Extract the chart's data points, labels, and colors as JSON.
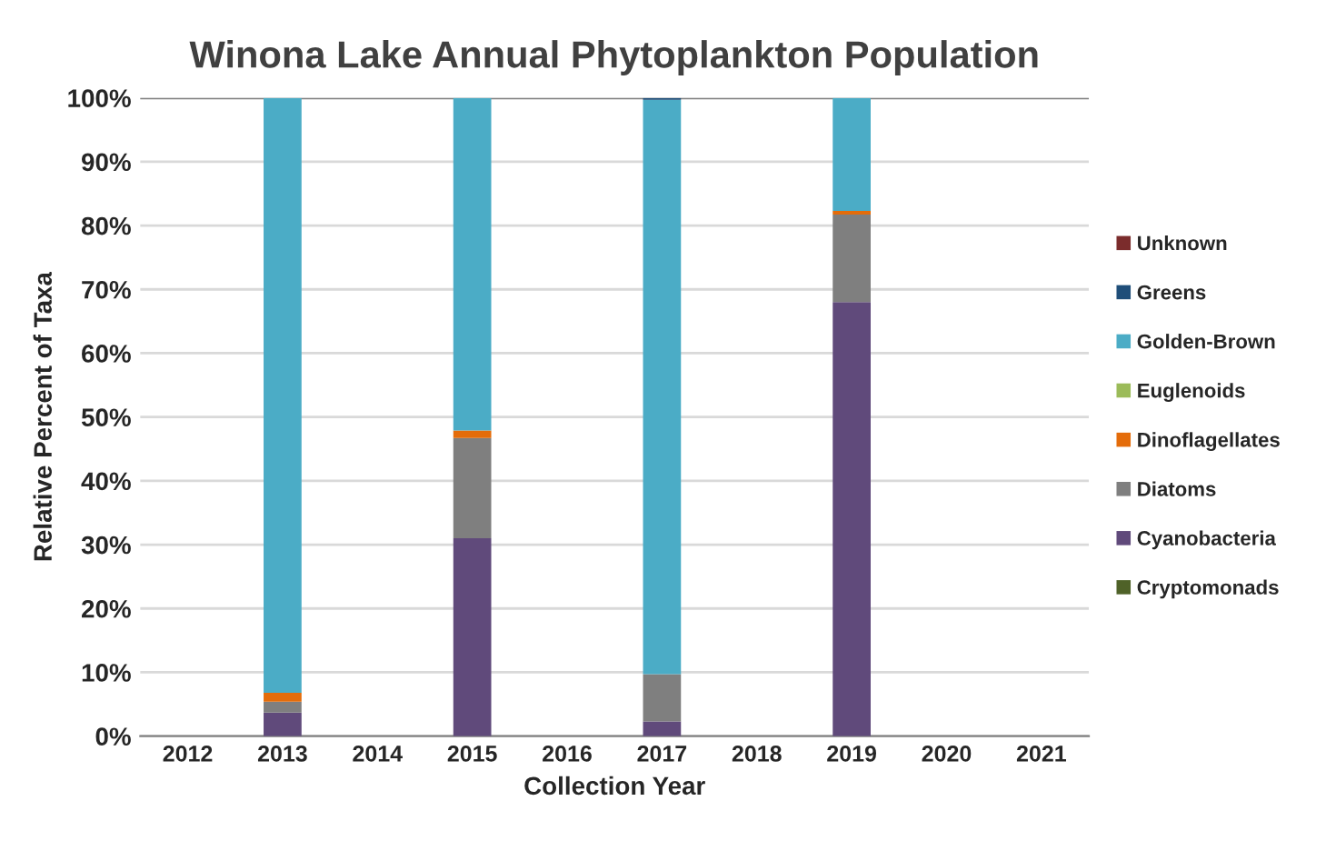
{
  "chart_data": {
    "type": "bar",
    "stacked": true,
    "title": "Winona Lake Annual Phytoplankton Population",
    "xlabel": "Collection Year",
    "ylabel": "Relative Percent of Taxa",
    "categories": [
      "2012",
      "2013",
      "2014",
      "2015",
      "2016",
      "2017",
      "2018",
      "2019",
      "2020",
      "2021"
    ],
    "series": [
      {
        "name": "Cryptomonads",
        "color": "#4f6228",
        "values": [
          null,
          null,
          null,
          null,
          null,
          null,
          null,
          null,
          null,
          null
        ]
      },
      {
        "name": "Cyanobacteria",
        "color": "#604a7b",
        "values": [
          null,
          3.7,
          null,
          31,
          null,
          2.3,
          null,
          68,
          null,
          null
        ]
      },
      {
        "name": "Diatoms",
        "color": "#7f7f7f",
        "values": [
          null,
          1.7,
          null,
          15.7,
          null,
          7.4,
          null,
          13.7,
          null,
          null
        ]
      },
      {
        "name": "Dinoflagellates",
        "color": "#e46c0a",
        "values": [
          null,
          1.4,
          null,
          1.2,
          null,
          0,
          null,
          0.6,
          null,
          null
        ]
      },
      {
        "name": "Euglenoids",
        "color": "#9bbb59",
        "values": [
          null,
          null,
          null,
          null,
          null,
          null,
          null,
          null,
          null,
          null
        ]
      },
      {
        "name": "Golden-Brown",
        "color": "#4bacc6",
        "values": [
          null,
          93.2,
          null,
          52.1,
          null,
          90,
          null,
          17.7,
          null,
          null
        ]
      },
      {
        "name": "Greens",
        "color": "#1f4e79",
        "values": [
          null,
          0,
          null,
          0,
          null,
          0.3,
          null,
          0,
          null,
          null
        ]
      },
      {
        "name": "Unknown",
        "color": "#7b2c2c",
        "values": [
          null,
          null,
          null,
          null,
          null,
          null,
          null,
          null,
          null,
          null
        ]
      }
    ],
    "ylim": [
      0,
      100
    ],
    "yticks": [
      {
        "value": 0,
        "label": "0%"
      },
      {
        "value": 10,
        "label": "10%"
      },
      {
        "value": 20,
        "label": "20%"
      },
      {
        "value": 30,
        "label": "30%"
      },
      {
        "value": 40,
        "label": "40%"
      },
      {
        "value": 50,
        "label": "50%"
      },
      {
        "value": 60,
        "label": "60%"
      },
      {
        "value": 70,
        "label": "70%"
      },
      {
        "value": 80,
        "label": "80%"
      },
      {
        "value": 90,
        "label": "90%"
      },
      {
        "value": 100,
        "label": "100%"
      }
    ],
    "grid": "y",
    "legend": "right"
  }
}
